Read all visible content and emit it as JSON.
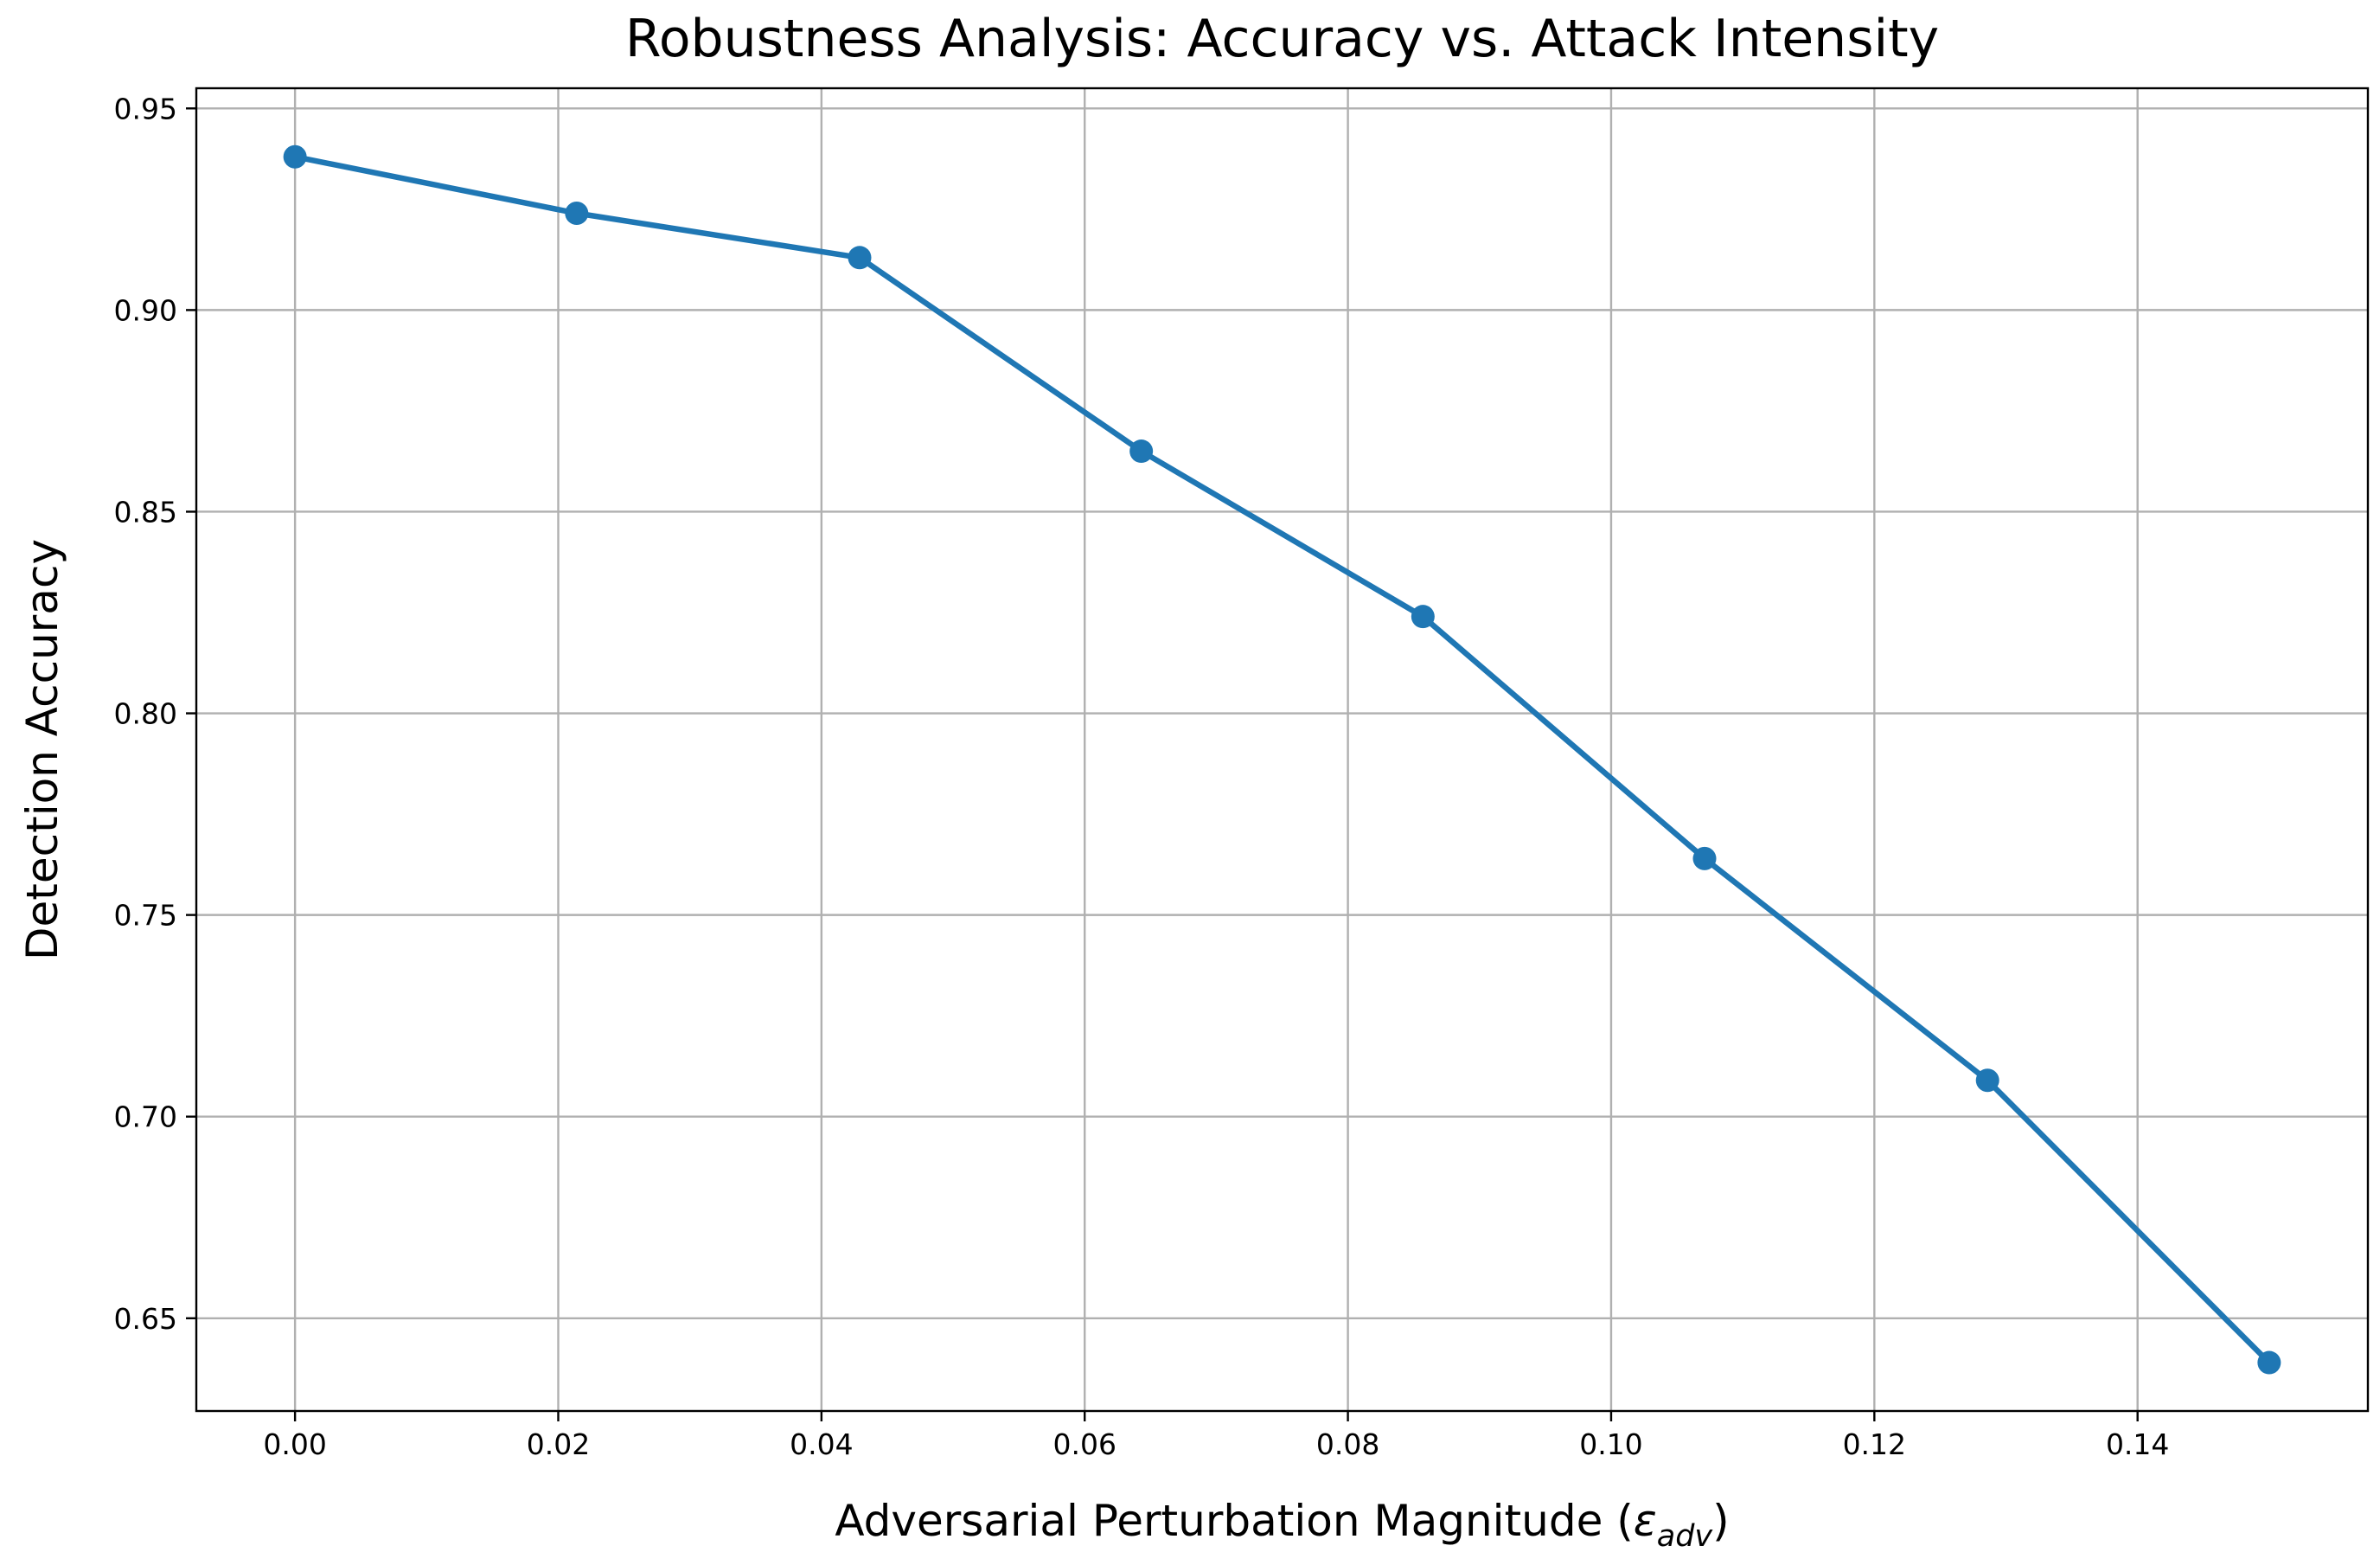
{
  "chart_data": {
    "type": "line",
    "title": "Robustness Analysis: Accuracy vs. Attack Intensity",
    "xlabel": "Adversarial Perturbation Magnitude (",
    "xlabel_symbol": "ε",
    "xlabel_subscript": "adv",
    "xlabel_close": ")",
    "ylabel": "Detection Accuracy",
    "xlim": [
      -0.0075,
      0.1575
    ],
    "ylim": [
      0.627,
      0.955
    ],
    "x_ticks": [
      0.0,
      0.02,
      0.04,
      0.06,
      0.08,
      0.1,
      0.12,
      0.14
    ],
    "x_tick_labels": [
      "0.00",
      "0.02",
      "0.04",
      "0.06",
      "0.08",
      "0.10",
      "0.12",
      "0.14"
    ],
    "y_ticks": [
      0.65,
      0.7,
      0.75,
      0.8,
      0.85,
      0.9,
      0.95
    ],
    "y_tick_labels": [
      "0.65",
      "0.70",
      "0.75",
      "0.80",
      "0.85",
      "0.90",
      "0.95"
    ],
    "grid": true,
    "color": "#1f77b4",
    "series": [
      {
        "x": [
          0.0,
          0.0214,
          0.0429,
          0.0643,
          0.0857,
          0.1071,
          0.1286,
          0.15
        ],
        "y": [
          0.938,
          0.924,
          0.913,
          0.865,
          0.824,
          0.764,
          0.709,
          0.639
        ]
      }
    ]
  }
}
